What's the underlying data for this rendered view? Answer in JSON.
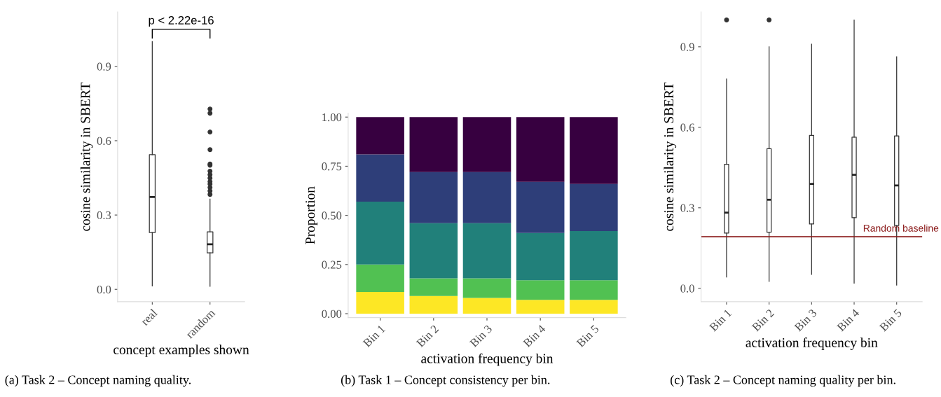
{
  "chart_data": [
    {
      "type": "box",
      "xlabel": "concept examples shown",
      "ylabel": "cosine similarity in SBERT",
      "categories": [
        "real",
        "random"
      ],
      "boxes": [
        {
          "low": 0.014,
          "q1": 0.229,
          "median": 0.373,
          "q3": 0.544,
          "high": 1.0
        },
        {
          "low": 0.012,
          "q1": 0.147,
          "median": 0.182,
          "q3": 0.232,
          "high": 0.364,
          "outliers": [
            0.383,
            0.397,
            0.411,
            0.425,
            0.435,
            0.449,
            0.463,
            0.477,
            0.501,
            0.506,
            0.564,
            0.635,
            0.711,
            0.728
          ]
        }
      ],
      "ylim": [
        -0.05,
        1.12
      ],
      "yticks": [
        {
          "value": 0.0,
          "label": "0.0"
        },
        {
          "value": 0.3,
          "label": "0.3"
        },
        {
          "value": 0.6,
          "label": "0.6"
        },
        {
          "value": 0.9,
          "label": "0.9"
        }
      ],
      "grid": false,
      "legend": false,
      "annotations": [
        "p < 2.22e-16",
        "(a) Task 2 – Concept naming quality."
      ]
    },
    {
      "type": "bar",
      "stacked": true,
      "xlabel": "activation frequency bin",
      "ylabel": "Proportion",
      "categories": [
        "Bin 1",
        "Bin 2",
        "Bin 3",
        "Bin 4",
        "Bin 5"
      ],
      "series": [
        {
          "color": "#fde725",
          "values": [
            0.11,
            0.09,
            0.08,
            0.07,
            0.07
          ]
        },
        {
          "color": "#51c152",
          "values": [
            0.14,
            0.09,
            0.1,
            0.1,
            0.1
          ]
        },
        {
          "color": "#21807a",
          "values": [
            0.32,
            0.28,
            0.28,
            0.24,
            0.25
          ]
        },
        {
          "color": "#2e3e79",
          "values": [
            0.24,
            0.26,
            0.26,
            0.26,
            0.24
          ]
        },
        {
          "color": "#370040",
          "values": [
            0.19,
            0.28,
            0.28,
            0.33,
            0.34
          ]
        }
      ],
      "ylim": [
        -0.02,
        1.02
      ],
      "yticks": [
        {
          "value": 0.0,
          "label": "0.00"
        },
        {
          "value": 0.25,
          "label": "0.25"
        },
        {
          "value": 0.5,
          "label": "0.50"
        },
        {
          "value": 0.75,
          "label": "0.75"
        },
        {
          "value": 1.0,
          "label": "1.00"
        }
      ],
      "grid": false,
      "legend": false,
      "annotations": [
        "(b) Task 1 – Concept consistency per bin."
      ]
    },
    {
      "type": "box",
      "xlabel": "activation frequency bin",
      "ylabel": "cosine similarity in SBERT",
      "categories": [
        "Bin 1",
        "Bin 2",
        "Bin 3",
        "Bin 4",
        "Bin 5"
      ],
      "boxes": [
        {
          "low": 0.042,
          "q1": 0.206,
          "median": 0.282,
          "q3": 0.462,
          "high": 0.78,
          "outliers": [
            1.0
          ]
        },
        {
          "low": 0.026,
          "q1": 0.209,
          "median": 0.33,
          "q3": 0.52,
          "high": 0.9,
          "outliers": [
            1.0
          ]
        },
        {
          "low": 0.052,
          "q1": 0.24,
          "median": 0.389,
          "q3": 0.57,
          "high": 0.91
        },
        {
          "low": 0.019,
          "q1": 0.263,
          "median": 0.423,
          "q3": 0.563,
          "high": 1.0
        },
        {
          "low": 0.012,
          "q1": 0.234,
          "median": 0.383,
          "q3": 0.568,
          "high": 0.863
        }
      ],
      "ylim": [
        -0.05,
        1.03
      ],
      "yticks": [
        {
          "value": 0.0,
          "label": "0.0"
        },
        {
          "value": 0.3,
          "label": "0.3"
        },
        {
          "value": 0.6,
          "label": "0.6"
        },
        {
          "value": 0.9,
          "label": "0.9"
        }
      ],
      "ref_lines": [
        {
          "axis": "y",
          "value": 0.192,
          "label": "Random baseline",
          "color": "#8b1a1a"
        }
      ],
      "grid": false,
      "legend": false,
      "annotations": [
        "(c) Task 2 – Concept naming quality per bin."
      ]
    }
  ]
}
